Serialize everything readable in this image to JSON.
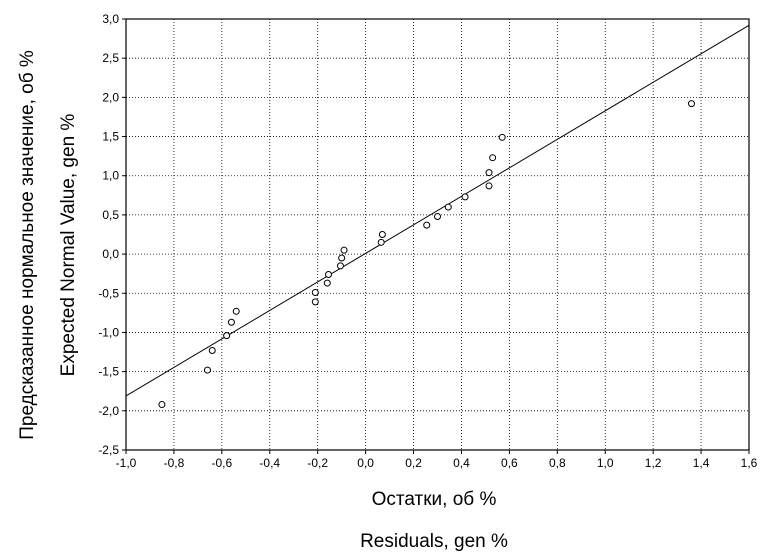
{
  "chart_data": {
    "type": "scatter",
    "title": "",
    "xlabel_ru": "Остатки, об %",
    "xlabel_en": "Residuals, gen %",
    "ylabel_ru": "Предсказанное нормальное значение, об %",
    "ylabel_en": "Expected Normal Value, gen %",
    "xlim": [
      -1.0,
      1.6
    ],
    "ylim": [
      -2.5,
      3.0
    ],
    "x_ticks": [
      "-1,0",
      "-0,8",
      "-0,6",
      "-0,4",
      "-0,2",
      "0,0",
      "0,2",
      "0,4",
      "0,6",
      "0,8",
      "1,0",
      "1,2",
      "1,4",
      "1,6"
    ],
    "y_ticks": [
      "-2,5",
      "-2,0",
      "-1,5",
      "-1,0",
      "-0,5",
      "0,0",
      "0,5",
      "1,0",
      "1,5",
      "2,0",
      "2,5",
      "3,0"
    ],
    "grid": true,
    "points": [
      {
        "x": -0.85,
        "y": -1.92
      },
      {
        "x": -0.66,
        "y": -1.48
      },
      {
        "x": -0.64,
        "y": -1.23
      },
      {
        "x": -0.58,
        "y": -1.04
      },
      {
        "x": -0.56,
        "y": -0.87
      },
      {
        "x": -0.54,
        "y": -0.73
      },
      {
        "x": -0.21,
        "y": -0.61
      },
      {
        "x": -0.21,
        "y": -0.49
      },
      {
        "x": -0.16,
        "y": -0.37
      },
      {
        "x": -0.155,
        "y": -0.26
      },
      {
        "x": -0.105,
        "y": -0.15
      },
      {
        "x": -0.1,
        "y": -0.05
      },
      {
        "x": -0.09,
        "y": 0.05
      },
      {
        "x": 0.065,
        "y": 0.15
      },
      {
        "x": 0.07,
        "y": 0.25
      },
      {
        "x": 0.255,
        "y": 0.37
      },
      {
        "x": 0.3,
        "y": 0.48
      },
      {
        "x": 0.345,
        "y": 0.6
      },
      {
        "x": 0.415,
        "y": 0.73
      },
      {
        "x": 0.515,
        "y": 0.87
      },
      {
        "x": 0.515,
        "y": 1.04
      },
      {
        "x": 0.53,
        "y": 1.23
      },
      {
        "x": 0.57,
        "y": 1.49
      },
      {
        "x": 1.36,
        "y": 1.92
      }
    ],
    "fit_line": {
      "x": [
        -1.0,
        1.6
      ],
      "y": [
        -1.81,
        2.92
      ]
    }
  }
}
